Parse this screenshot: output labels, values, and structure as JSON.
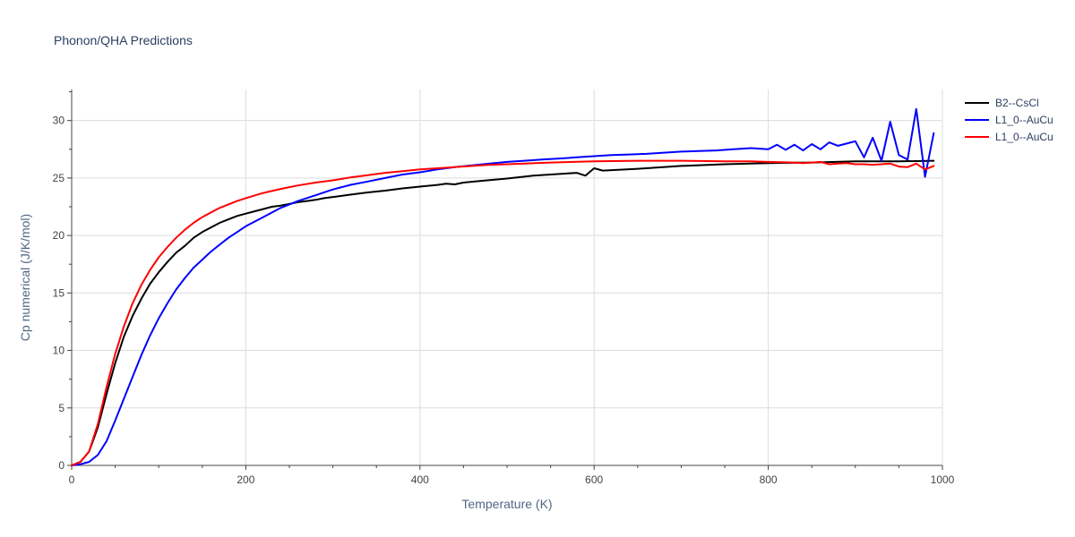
{
  "chart_data": {
    "type": "line",
    "title": "Phonon/QHA Predictions",
    "xlabel": "Temperature (K)",
    "ylabel": "Cp numerical (J/K/mol)",
    "xlim": [
      0,
      1000
    ],
    "ylim": [
      0,
      32.7
    ],
    "x_ticks": [
      0,
      200,
      400,
      600,
      800,
      1000
    ],
    "y_ticks": [
      0,
      5,
      10,
      15,
      20,
      25,
      30
    ],
    "grid": true,
    "legend_position": "top-right",
    "series": [
      {
        "name": "B2--CsCl",
        "color": "#000000",
        "x": [
          0,
          10,
          20,
          30,
          40,
          50,
          60,
          70,
          80,
          90,
          100,
          110,
          120,
          130,
          140,
          150,
          160,
          170,
          180,
          190,
          200,
          210,
          220,
          230,
          240,
          250,
          260,
          270,
          280,
          290,
          300,
          320,
          340,
          360,
          380,
          400,
          420,
          430,
          440,
          450,
          470,
          500,
          530,
          560,
          580,
          590,
          600,
          610,
          650,
          700,
          750,
          800,
          850,
          900,
          950,
          990
        ],
        "y": [
          0,
          0.3,
          1.2,
          3.3,
          6.2,
          8.9,
          11.2,
          13.0,
          14.5,
          15.8,
          16.8,
          17.7,
          18.5,
          19.1,
          19.8,
          20.3,
          20.7,
          21.1,
          21.4,
          21.7,
          21.9,
          22.1,
          22.3,
          22.5,
          22.6,
          22.75,
          22.9,
          23.0,
          23.1,
          23.25,
          23.35,
          23.55,
          23.75,
          23.9,
          24.1,
          24.25,
          24.4,
          24.5,
          24.45,
          24.6,
          24.75,
          24.95,
          25.2,
          25.35,
          25.45,
          25.2,
          25.85,
          25.65,
          25.8,
          26.05,
          26.2,
          26.3,
          26.35,
          26.45,
          26.45,
          26.5
        ]
      },
      {
        "name": "L1_0--AuCu",
        "color": "#0000ff",
        "x": [
          0,
          10,
          20,
          30,
          40,
          50,
          60,
          70,
          80,
          90,
          100,
          110,
          120,
          130,
          140,
          150,
          160,
          170,
          180,
          190,
          200,
          220,
          240,
          260,
          280,
          300,
          320,
          340,
          360,
          380,
          400,
          420,
          440,
          460,
          480,
          500,
          520,
          540,
          560,
          580,
          600,
          620,
          640,
          660,
          680,
          700,
          720,
          740,
          760,
          780,
          790,
          800,
          810,
          820,
          830,
          840,
          850,
          860,
          870,
          880,
          890,
          900,
          910,
          920,
          930,
          940,
          950,
          960,
          970,
          980,
          990
        ],
        "y": [
          0,
          0.1,
          0.3,
          0.9,
          2.1,
          3.9,
          5.8,
          7.7,
          9.6,
          11.3,
          12.8,
          14.1,
          15.3,
          16.3,
          17.2,
          17.9,
          18.6,
          19.2,
          19.8,
          20.3,
          20.8,
          21.6,
          22.4,
          23.0,
          23.5,
          24.0,
          24.4,
          24.7,
          25.0,
          25.3,
          25.5,
          25.75,
          25.95,
          26.1,
          26.25,
          26.4,
          26.5,
          26.6,
          26.7,
          26.8,
          26.9,
          27.0,
          27.05,
          27.1,
          27.2,
          27.3,
          27.35,
          27.4,
          27.5,
          27.6,
          27.55,
          27.5,
          27.9,
          27.45,
          27.9,
          27.4,
          27.95,
          27.5,
          28.1,
          27.8,
          28.0,
          28.2,
          26.8,
          28.5,
          26.5,
          29.9,
          27.0,
          26.6,
          31.0,
          25.1,
          28.9
        ]
      },
      {
        "name": "L1_0--AuCu",
        "color": "#ff0000",
        "x": [
          0,
          10,
          20,
          30,
          40,
          50,
          60,
          70,
          80,
          90,
          100,
          110,
          120,
          130,
          140,
          150,
          160,
          170,
          180,
          190,
          200,
          220,
          240,
          260,
          280,
          300,
          320,
          340,
          360,
          380,
          400,
          420,
          440,
          460,
          480,
          500,
          550,
          600,
          650,
          700,
          750,
          780,
          800,
          830,
          840,
          850,
          860,
          870,
          880,
          890,
          900,
          910,
          920,
          930,
          940,
          950,
          960,
          970,
          980,
          990
        ],
        "y": [
          0,
          0.3,
          1.2,
          3.6,
          6.8,
          9.7,
          12.1,
          14.1,
          15.7,
          17.0,
          18.1,
          19.0,
          19.8,
          20.5,
          21.1,
          21.6,
          22.0,
          22.4,
          22.7,
          23.0,
          23.25,
          23.7,
          24.05,
          24.35,
          24.6,
          24.8,
          25.05,
          25.25,
          25.45,
          25.6,
          25.75,
          25.85,
          25.95,
          26.05,
          26.15,
          26.2,
          26.35,
          26.45,
          26.5,
          26.5,
          26.45,
          26.45,
          26.4,
          26.35,
          26.3,
          26.35,
          26.4,
          26.2,
          26.25,
          26.3,
          26.2,
          26.2,
          26.15,
          26.2,
          26.25,
          26.0,
          25.95,
          26.25,
          25.75,
          26.05
        ]
      }
    ]
  }
}
